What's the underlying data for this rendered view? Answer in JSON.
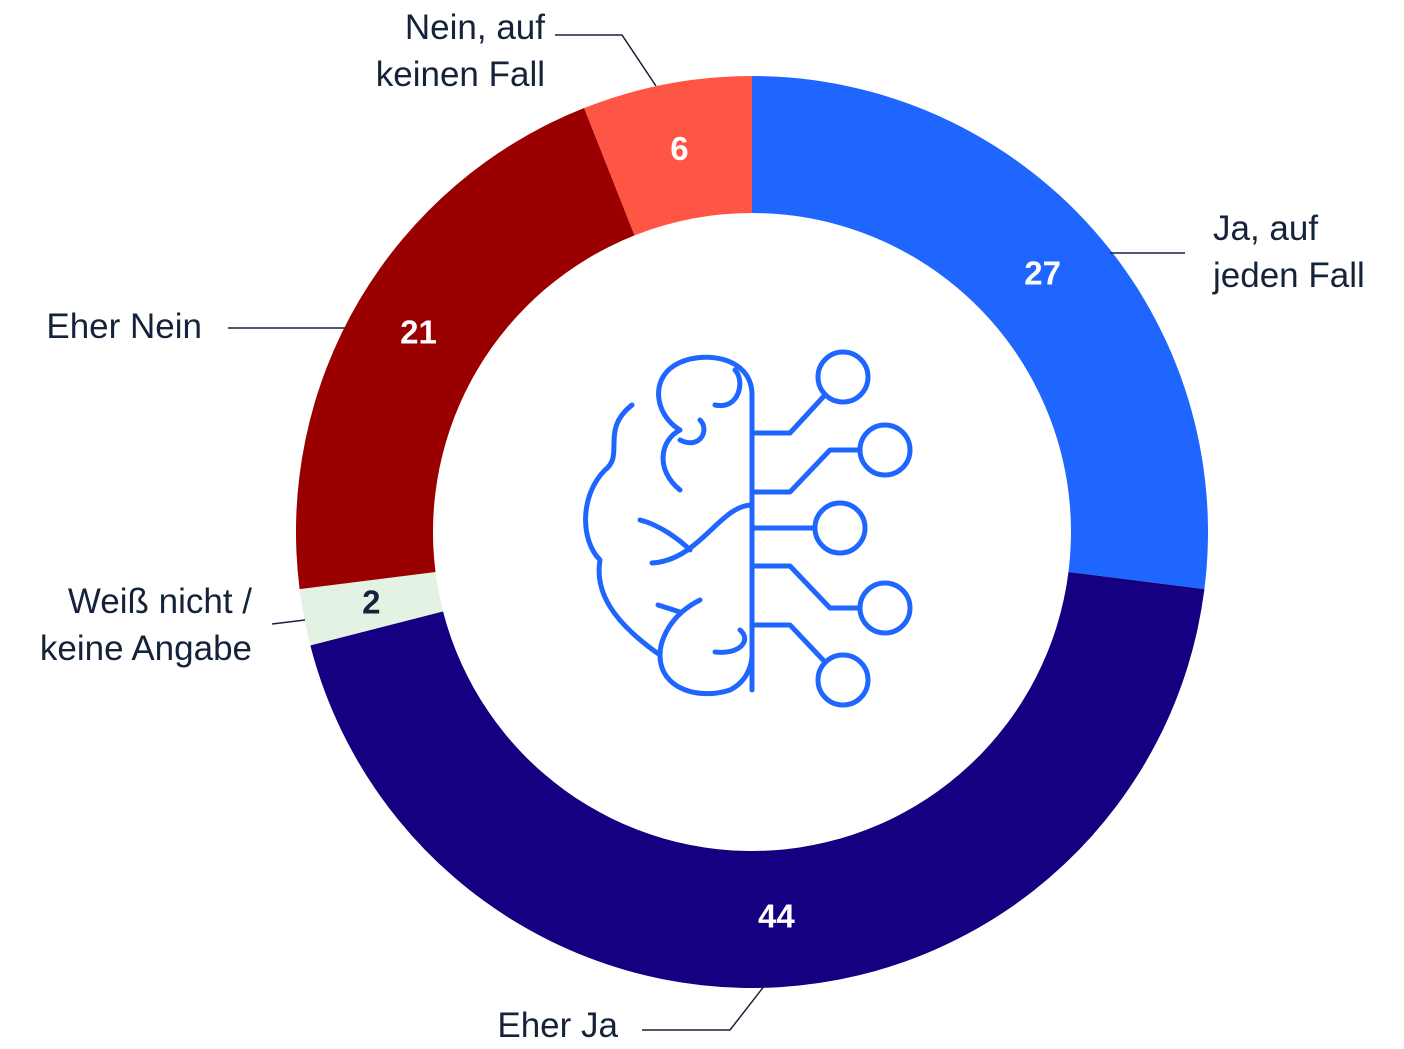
{
  "chart_data": {
    "type": "donut",
    "categories": [
      "Ja, auf\njeden Fall",
      "Eher Ja",
      "Weiß nicht /\nkeine Angabe",
      "Eher Nein",
      "Nein, auf\nkeinen Fall"
    ],
    "values": [
      27,
      44,
      2,
      21,
      6
    ],
    "colors": [
      "#1f66ff",
      "#140080",
      "#e3f2e3",
      "#9b0000",
      "#ff5544"
    ]
  }
}
